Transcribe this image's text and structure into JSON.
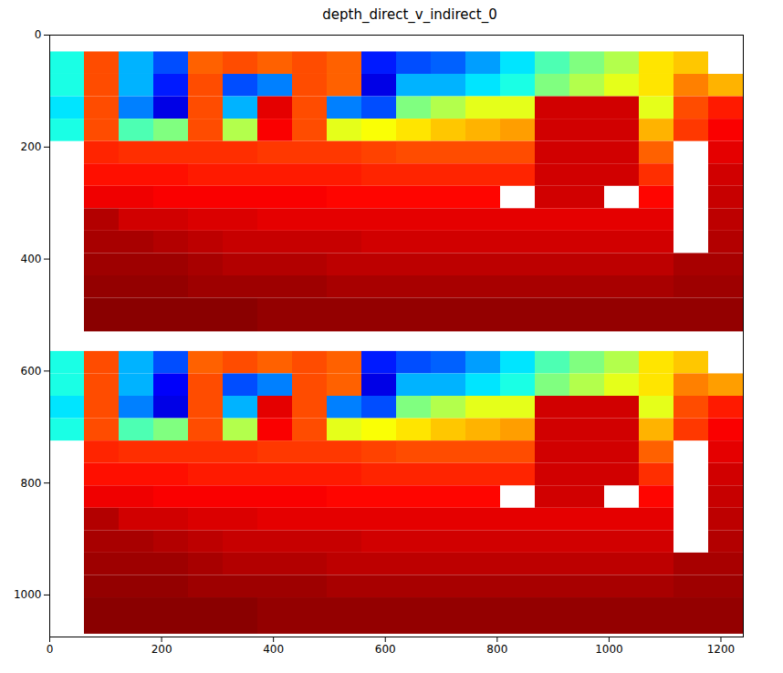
{
  "chart_data": {
    "type": "heatmap",
    "title": "depth_direct_v_indirect_0",
    "color": "jet",
    "value_range": [
      0,
      1
    ],
    "xlim": [
      0,
      1240
    ],
    "ylim": [
      1075,
      0
    ],
    "xticks": [
      0,
      200,
      400,
      600,
      800,
      1000,
      1200
    ],
    "yticks": [
      0,
      200,
      400,
      600,
      800,
      1000
    ],
    "grid": false,
    "x_edges": [
      0,
      62,
      124,
      186,
      248,
      310,
      372,
      434,
      496,
      558,
      620,
      682,
      744,
      806,
      868,
      930,
      992,
      1054,
      1116,
      1178,
      1240
    ],
    "panels": [
      {
        "y_edges": [
          30,
          70,
          110,
          150,
          190,
          230,
          270,
          310,
          350,
          390,
          430,
          470,
          530
        ],
        "values": [
          [
            0.4,
            0.8,
            0.3,
            0.2,
            0.78,
            0.8,
            0.78,
            0.8,
            0.78,
            0.15,
            0.2,
            0.22,
            0.28,
            0.35,
            0.45,
            0.5,
            0.55,
            0.65,
            0.68,
            null
          ],
          [
            0.4,
            0.8,
            0.3,
            0.15,
            0.8,
            0.2,
            0.25,
            0.8,
            0.78,
            0.1,
            0.3,
            0.3,
            0.35,
            0.4,
            0.5,
            0.55,
            0.6,
            0.65,
            0.75,
            0.7
          ],
          [
            0.35,
            0.8,
            0.25,
            0.1,
            0.8,
            0.3,
            0.9,
            0.8,
            0.25,
            0.2,
            0.5,
            0.55,
            0.6,
            0.6,
            0.92,
            0.92,
            0.92,
            0.6,
            0.8,
            0.85
          ],
          [
            0.4,
            0.8,
            0.45,
            0.5,
            0.8,
            0.55,
            0.88,
            0.8,
            0.6,
            0.62,
            0.65,
            0.68,
            0.7,
            0.72,
            0.92,
            0.92,
            0.92,
            0.7,
            0.82,
            0.88
          ],
          [
            null,
            0.84,
            0.83,
            0.83,
            0.83,
            0.83,
            0.82,
            0.82,
            0.82,
            0.81,
            0.8,
            0.8,
            0.8,
            0.8,
            0.92,
            0.92,
            0.92,
            0.78,
            null,
            0.9
          ],
          [
            null,
            0.86,
            0.86,
            0.86,
            0.85,
            0.85,
            0.85,
            0.85,
            0.85,
            0.84,
            0.84,
            0.84,
            0.84,
            0.84,
            0.92,
            0.92,
            0.92,
            0.83,
            null,
            0.92
          ],
          [
            null,
            0.89,
            0.89,
            0.88,
            0.88,
            0.88,
            0.88,
            0.88,
            0.87,
            0.87,
            0.87,
            0.87,
            0.87,
            null,
            0.92,
            0.92,
            null,
            0.87,
            null,
            0.93
          ],
          [
            null,
            0.95,
            0.92,
            0.92,
            0.91,
            0.91,
            0.9,
            0.9,
            0.9,
            0.9,
            0.9,
            0.9,
            0.9,
            0.9,
            0.9,
            0.9,
            0.9,
            0.9,
            null,
            0.94
          ],
          [
            null,
            0.96,
            0.96,
            0.95,
            0.94,
            0.93,
            0.93,
            0.93,
            0.93,
            0.92,
            0.92,
            0.92,
            0.92,
            0.92,
            0.92,
            0.92,
            0.92,
            0.92,
            null,
            0.95
          ],
          [
            null,
            0.97,
            0.97,
            0.97,
            0.96,
            0.95,
            0.95,
            0.95,
            0.94,
            0.94,
            0.94,
            0.94,
            0.94,
            0.94,
            0.94,
            0.94,
            0.94,
            0.94,
            0.96,
            0.96
          ],
          [
            null,
            0.98,
            0.98,
            0.98,
            0.97,
            0.97,
            0.97,
            0.97,
            0.96,
            0.96,
            0.96,
            0.96,
            0.96,
            0.96,
            0.96,
            0.96,
            0.96,
            0.96,
            0.97,
            0.97
          ],
          [
            null,
            0.99,
            0.99,
            0.99,
            0.99,
            0.99,
            0.98,
            0.98,
            0.98,
            0.98,
            0.98,
            0.98,
            0.98,
            0.98,
            0.98,
            0.98,
            0.98,
            0.98,
            0.98,
            0.98
          ]
        ]
      },
      {
        "y_edges": [
          565,
          605,
          645,
          685,
          725,
          765,
          805,
          845,
          885,
          925,
          965,
          1005,
          1070
        ],
        "values": [
          [
            0.4,
            0.8,
            0.3,
            0.2,
            0.78,
            0.8,
            0.78,
            0.8,
            0.78,
            0.15,
            0.2,
            0.22,
            0.28,
            0.35,
            0.45,
            0.5,
            0.55,
            0.65,
            0.68,
            null
          ],
          [
            0.4,
            0.8,
            0.3,
            0.12,
            0.8,
            0.2,
            0.25,
            0.8,
            0.78,
            0.1,
            0.3,
            0.3,
            0.35,
            0.4,
            0.5,
            0.55,
            0.6,
            0.65,
            0.75,
            0.72
          ],
          [
            0.35,
            0.8,
            0.25,
            0.1,
            0.8,
            0.3,
            0.9,
            0.8,
            0.25,
            0.2,
            0.5,
            0.55,
            0.6,
            0.6,
            0.92,
            0.92,
            0.92,
            0.6,
            0.8,
            0.85
          ],
          [
            0.4,
            0.8,
            0.45,
            0.5,
            0.8,
            0.55,
            0.88,
            0.8,
            0.6,
            0.62,
            0.65,
            0.68,
            0.7,
            0.72,
            0.92,
            0.92,
            0.92,
            0.7,
            0.82,
            0.88
          ],
          [
            null,
            0.84,
            0.83,
            0.83,
            0.83,
            0.83,
            0.82,
            0.82,
            0.82,
            0.81,
            0.8,
            0.8,
            0.8,
            0.8,
            0.92,
            0.92,
            0.92,
            0.78,
            null,
            0.9
          ],
          [
            null,
            0.86,
            0.86,
            0.86,
            0.85,
            0.85,
            0.85,
            0.85,
            0.85,
            0.84,
            0.84,
            0.84,
            0.84,
            0.84,
            0.92,
            0.92,
            0.92,
            0.83,
            null,
            0.92
          ],
          [
            null,
            0.89,
            0.89,
            0.88,
            0.88,
            0.88,
            0.88,
            0.88,
            0.87,
            0.87,
            0.87,
            0.87,
            0.87,
            null,
            0.92,
            0.92,
            null,
            0.87,
            null,
            0.93
          ],
          [
            null,
            0.95,
            0.92,
            0.92,
            0.91,
            0.91,
            0.9,
            0.9,
            0.9,
            0.9,
            0.9,
            0.9,
            0.9,
            0.9,
            0.9,
            0.9,
            0.9,
            0.9,
            null,
            0.94
          ],
          [
            null,
            0.96,
            0.96,
            0.95,
            0.94,
            0.93,
            0.93,
            0.93,
            0.93,
            0.92,
            0.92,
            0.92,
            0.92,
            0.92,
            0.92,
            0.92,
            0.92,
            0.92,
            null,
            0.95
          ],
          [
            null,
            0.97,
            0.97,
            0.97,
            0.96,
            0.95,
            0.95,
            0.95,
            0.94,
            0.94,
            0.94,
            0.94,
            0.94,
            0.94,
            0.94,
            0.94,
            0.94,
            0.94,
            0.96,
            0.96
          ],
          [
            null,
            0.98,
            0.98,
            0.98,
            0.97,
            0.97,
            0.97,
            0.97,
            0.96,
            0.96,
            0.96,
            0.96,
            0.96,
            0.96,
            0.96,
            0.96,
            0.96,
            0.96,
            0.97,
            0.97
          ],
          [
            null,
            0.99,
            0.99,
            0.99,
            0.99,
            0.99,
            0.98,
            0.98,
            0.98,
            0.98,
            0.98,
            0.98,
            0.98,
            0.98,
            0.98,
            0.98,
            0.98,
            0.98,
            0.98,
            0.98
          ]
        ]
      }
    ]
  }
}
